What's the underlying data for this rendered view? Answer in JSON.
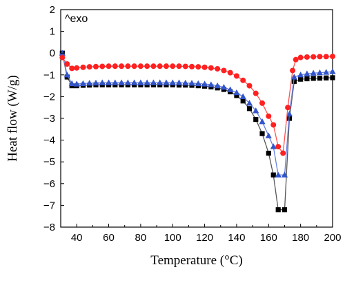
{
  "chart_data": {
    "type": "line",
    "title": "",
    "xlabel": "Temperature (°C)",
    "ylabel": "Heat flow (W/g)",
    "xlim": [
      30,
      200
    ],
    "ylim": [
      -8,
      2
    ],
    "xticks": [
      40,
      60,
      80,
      100,
      120,
      140,
      160,
      180,
      200
    ],
    "yticks": [
      2,
      1,
      0,
      -1,
      -2,
      -3,
      -4,
      -5,
      -6,
      -7,
      -8
    ],
    "annotation": "^exo",
    "grid": false,
    "legend": "none",
    "series": [
      {
        "marker": "square",
        "color": "#000000",
        "line_color": "#555555",
        "points": [
          [
            31,
            0.0
          ],
          [
            34,
            -1.1
          ],
          [
            37,
            -1.5
          ],
          [
            40,
            -1.5
          ],
          [
            44,
            -1.48
          ],
          [
            48,
            -1.47
          ],
          [
            52,
            -1.46
          ],
          [
            56,
            -1.46
          ],
          [
            60,
            -1.46
          ],
          [
            64,
            -1.46
          ],
          [
            68,
            -1.46
          ],
          [
            72,
            -1.46
          ],
          [
            76,
            -1.46
          ],
          [
            80,
            -1.46
          ],
          [
            84,
            -1.46
          ],
          [
            88,
            -1.46
          ],
          [
            92,
            -1.46
          ],
          [
            96,
            -1.46
          ],
          [
            100,
            -1.46
          ],
          [
            104,
            -1.47
          ],
          [
            108,
            -1.47
          ],
          [
            112,
            -1.48
          ],
          [
            116,
            -1.5
          ],
          [
            120,
            -1.52
          ],
          [
            124,
            -1.55
          ],
          [
            128,
            -1.6
          ],
          [
            132,
            -1.67
          ],
          [
            136,
            -1.78
          ],
          [
            140,
            -1.95
          ],
          [
            144,
            -2.2
          ],
          [
            148,
            -2.55
          ],
          [
            152,
            -3.05
          ],
          [
            156,
            -3.7
          ],
          [
            160,
            -4.6
          ],
          [
            163,
            -5.6
          ],
          [
            166,
            -7.2
          ],
          [
            170,
            -7.2
          ],
          [
            173,
            -3.0
          ],
          [
            176,
            -1.3
          ],
          [
            180,
            -1.2
          ],
          [
            184,
            -1.18
          ],
          [
            188,
            -1.16
          ],
          [
            192,
            -1.15
          ],
          [
            196,
            -1.14
          ],
          [
            200,
            -1.13
          ]
        ]
      },
      {
        "marker": "circle",
        "color": "#ff2020",
        "line_color": "#ff5050",
        "points": [
          [
            31,
            -0.2
          ],
          [
            34,
            -0.5
          ],
          [
            37,
            -0.7
          ],
          [
            40,
            -0.68
          ],
          [
            44,
            -0.65
          ],
          [
            48,
            -0.63
          ],
          [
            52,
            -0.62
          ],
          [
            56,
            -0.61
          ],
          [
            60,
            -0.6
          ],
          [
            64,
            -0.6
          ],
          [
            68,
            -0.6
          ],
          [
            72,
            -0.6
          ],
          [
            76,
            -0.6
          ],
          [
            80,
            -0.6
          ],
          [
            84,
            -0.6
          ],
          [
            88,
            -0.6
          ],
          [
            92,
            -0.6
          ],
          [
            96,
            -0.6
          ],
          [
            100,
            -0.6
          ],
          [
            104,
            -0.6
          ],
          [
            108,
            -0.61
          ],
          [
            112,
            -0.62
          ],
          [
            116,
            -0.63
          ],
          [
            120,
            -0.65
          ],
          [
            124,
            -0.68
          ],
          [
            128,
            -0.72
          ],
          [
            132,
            -0.8
          ],
          [
            136,
            -0.9
          ],
          [
            140,
            -1.05
          ],
          [
            144,
            -1.25
          ],
          [
            148,
            -1.5
          ],
          [
            152,
            -1.85
          ],
          [
            156,
            -2.3
          ],
          [
            160,
            -2.9
          ],
          [
            163,
            -3.3
          ],
          [
            166,
            -4.3
          ],
          [
            169,
            -4.6
          ],
          [
            172,
            -2.5
          ],
          [
            175,
            -0.8
          ],
          [
            177,
            -0.3
          ],
          [
            180,
            -0.2
          ],
          [
            184,
            -0.18
          ],
          [
            188,
            -0.17
          ],
          [
            192,
            -0.16
          ],
          [
            196,
            -0.16
          ],
          [
            200,
            -0.15
          ]
        ]
      },
      {
        "marker": "triangle",
        "color": "#3355cc",
        "line_color": "#6680e0",
        "points": [
          [
            31,
            0.0
          ],
          [
            34,
            -1.0
          ],
          [
            37,
            -1.4
          ],
          [
            40,
            -1.42
          ],
          [
            44,
            -1.4
          ],
          [
            48,
            -1.38
          ],
          [
            52,
            -1.37
          ],
          [
            56,
            -1.36
          ],
          [
            60,
            -1.36
          ],
          [
            64,
            -1.36
          ],
          [
            68,
            -1.36
          ],
          [
            72,
            -1.36
          ],
          [
            76,
            -1.36
          ],
          [
            80,
            -1.36
          ],
          [
            84,
            -1.36
          ],
          [
            88,
            -1.36
          ],
          [
            92,
            -1.36
          ],
          [
            96,
            -1.36
          ],
          [
            100,
            -1.36
          ],
          [
            104,
            -1.36
          ],
          [
            108,
            -1.37
          ],
          [
            112,
            -1.38
          ],
          [
            116,
            -1.4
          ],
          [
            120,
            -1.42
          ],
          [
            124,
            -1.45
          ],
          [
            128,
            -1.5
          ],
          [
            132,
            -1.57
          ],
          [
            136,
            -1.68
          ],
          [
            140,
            -1.82
          ],
          [
            144,
            -2.0
          ],
          [
            148,
            -2.3
          ],
          [
            152,
            -2.65
          ],
          [
            156,
            -3.15
          ],
          [
            160,
            -3.8
          ],
          [
            163,
            -4.3
          ],
          [
            166,
            -5.6
          ],
          [
            170,
            -5.6
          ],
          [
            173,
            -2.8
          ],
          [
            176,
            -1.1
          ],
          [
            180,
            -1.0
          ],
          [
            184,
            -0.95
          ],
          [
            188,
            -0.92
          ],
          [
            192,
            -0.9
          ],
          [
            196,
            -0.88
          ],
          [
            200,
            -0.85
          ]
        ]
      }
    ]
  }
}
